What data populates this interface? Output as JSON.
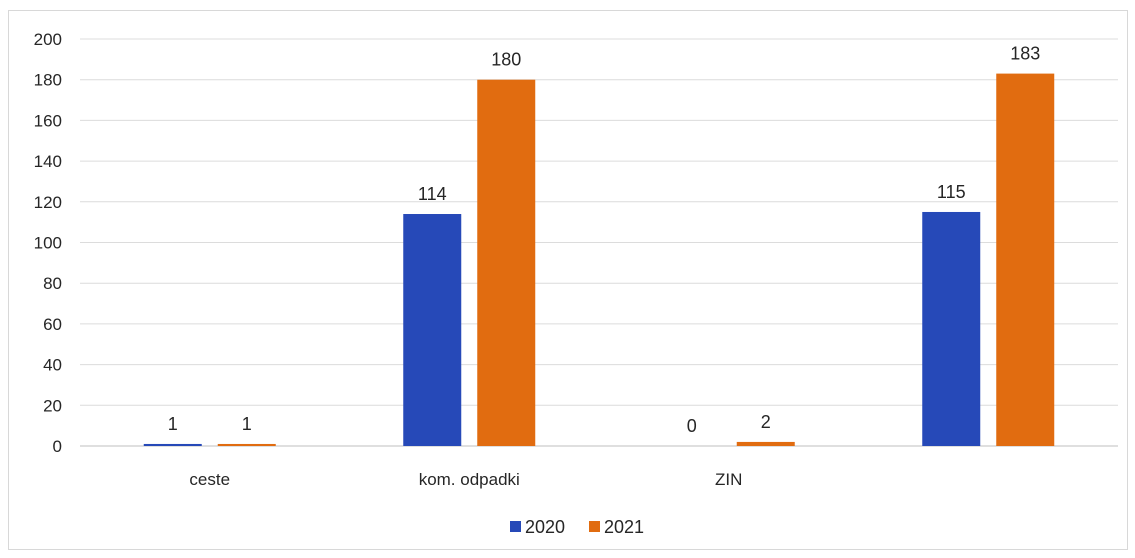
{
  "chart_data": {
    "type": "bar",
    "categories": [
      "ceste",
      "kom. odpadki",
      "ZIN",
      ""
    ],
    "series": [
      {
        "name": "2020",
        "values": [
          1,
          114,
          0,
          115
        ],
        "color": "#2649b8"
      },
      {
        "name": "2021",
        "values": [
          1,
          180,
          2,
          183
        ],
        "color": "#e16c10"
      }
    ],
    "y_ticks": [
      "0",
      "20",
      "40",
      "60",
      "80",
      "100",
      "120",
      "140",
      "160",
      "180",
      "200"
    ],
    "ylim": [
      0,
      200
    ],
    "grid": true,
    "legend_position": "bottom"
  }
}
